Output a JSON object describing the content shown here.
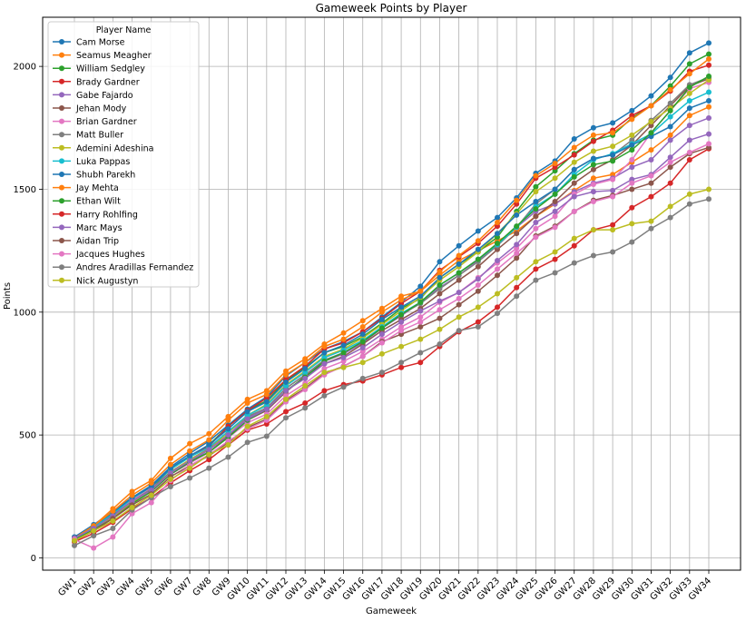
{
  "chart_data": {
    "type": "line",
    "title": "Gameweek Points by Player",
    "xlabel": "Gameweek",
    "ylabel": "Points",
    "ylim": [
      -50,
      2200
    ],
    "yticks": [
      0,
      500,
      1000,
      1500,
      2000
    ],
    "grid": true,
    "legend": {
      "title": "Player Name",
      "placement": "top-left"
    },
    "categories": [
      "GW1",
      "GW2",
      "GW3",
      "GW4",
      "GW5",
      "GW6",
      "GW7",
      "GW8",
      "GW9",
      "GW10",
      "GW11",
      "GW12",
      "GW13",
      "GW14",
      "GW15",
      "GW16",
      "GW17",
      "GW18",
      "GW19",
      "GW20",
      "GW21",
      "GW22",
      "GW23",
      "GW24",
      "GW25",
      "GW26",
      "GW27",
      "GW28",
      "GW29",
      "GW30",
      "GW31",
      "GW32",
      "GW33",
      "GW34"
    ],
    "series": [
      {
        "name": "Cam Morse",
        "color": "#1f77b4",
        "values": [
          85,
          135,
          190,
          245,
          295,
          370,
          425,
          475,
          540,
          605,
          655,
          740,
          795,
          850,
          880,
          920,
          980,
          1040,
          1105,
          1205,
          1270,
          1330,
          1385,
          1465,
          1565,
          1615,
          1705,
          1750,
          1770,
          1820,
          1880,
          1955,
          2055,
          2095
        ]
      },
      {
        "name": "Seamus Meagher",
        "color": "#ff7f0e",
        "values": [
          75,
          130,
          200,
          270,
          315,
          405,
          465,
          505,
          575,
          645,
          680,
          760,
          810,
          870,
          915,
          965,
          1015,
          1065,
          1085,
          1150,
          1210,
          1250,
          1290,
          1330,
          1390,
          1440,
          1495,
          1545,
          1560,
          1610,
          1660,
          1720,
          1800,
          1835
        ]
      },
      {
        "name": "William Sedgley",
        "color": "#2ca02c",
        "values": [
          80,
          125,
          170,
          235,
          285,
          360,
          410,
          460,
          535,
          600,
          640,
          720,
          775,
          835,
          860,
          900,
          955,
          1015,
          1055,
          1140,
          1195,
          1245,
          1305,
          1410,
          1510,
          1575,
          1645,
          1700,
          1720,
          1790,
          1840,
          1920,
          2010,
          2050
        ]
      },
      {
        "name": "Brady Gardner",
        "color": "#d62728",
        "values": [
          80,
          120,
          180,
          240,
          290,
          360,
          415,
          455,
          535,
          600,
          650,
          725,
          780,
          850,
          875,
          920,
          975,
          1035,
          1085,
          1170,
          1225,
          1280,
          1350,
          1440,
          1545,
          1590,
          1640,
          1695,
          1740,
          1800,
          1840,
          1900,
          1980,
          2005
        ]
      },
      {
        "name": "Gabe Fajardo",
        "color": "#9467bd",
        "values": [
          75,
          120,
          175,
          240,
          280,
          345,
          390,
          440,
          500,
          570,
          610,
          690,
          745,
          800,
          830,
          875,
          935,
          985,
          1040,
          1100,
          1150,
          1210,
          1275,
          1345,
          1410,
          1440,
          1490,
          1525,
          1545,
          1590,
          1620,
          1700,
          1760,
          1790
        ]
      },
      {
        "name": "Jehan Mody",
        "color": "#8c564b",
        "values": [
          70,
          115,
          170,
          225,
          270,
          340,
          390,
          430,
          495,
          560,
          600,
          675,
          740,
          790,
          820,
          870,
          925,
          970,
          1015,
          1075,
          1130,
          1185,
          1255,
          1320,
          1390,
          1450,
          1525,
          1580,
          1620,
          1680,
          1760,
          1840,
          1920,
          1950
        ]
      },
      {
        "name": "Brian Gardner",
        "color": "#e377c2",
        "values": [
          75,
          120,
          175,
          235,
          285,
          340,
          385,
          430,
          490,
          550,
          585,
          660,
          710,
          770,
          800,
          840,
          890,
          940,
          980,
          1040,
          1080,
          1140,
          1200,
          1260,
          1340,
          1390,
          1480,
          1520,
          1540,
          1620,
          1730,
          1820,
          1910,
          1935
        ]
      },
      {
        "name": "Matt Buller",
        "color": "#7f7f7f",
        "values": [
          80,
          120,
          175,
          230,
          280,
          350,
          400,
          445,
          510,
          575,
          610,
          690,
          745,
          805,
          835,
          880,
          935,
          990,
          1035,
          1095,
          1150,
          1205,
          1270,
          1345,
          1440,
          1500,
          1580,
          1625,
          1640,
          1700,
          1780,
          1850,
          1925,
          1955
        ]
      },
      {
        "name": "Ademini Adeshina",
        "color": "#bcbd22",
        "values": [
          75,
          115,
          165,
          225,
          275,
          345,
          400,
          440,
          510,
          580,
          625,
          705,
          760,
          820,
          850,
          895,
          950,
          1005,
          1060,
          1130,
          1185,
          1245,
          1320,
          1400,
          1490,
          1545,
          1610,
          1655,
          1675,
          1720,
          1775,
          1830,
          1890,
          1945
        ]
      },
      {
        "name": "Luka Pappas",
        "color": "#17becf",
        "values": [
          80,
          125,
          180,
          240,
          290,
          360,
          410,
          450,
          515,
          580,
          620,
          700,
          755,
          815,
          845,
          885,
          940,
          995,
          1040,
          1110,
          1160,
          1215,
          1275,
          1345,
          1430,
          1480,
          1560,
          1620,
          1645,
          1685,
          1725,
          1795,
          1860,
          1895
        ]
      },
      {
        "name": "Shubh Parekh",
        "color": "#1f77b4",
        "values": [
          85,
          130,
          185,
          245,
          290,
          365,
          415,
          460,
          525,
          595,
          635,
          715,
          770,
          835,
          865,
          910,
          970,
          1020,
          1065,
          1140,
          1195,
          1255,
          1320,
          1395,
          1450,
          1500,
          1580,
          1625,
          1640,
          1680,
          1715,
          1755,
          1830,
          1860
        ]
      },
      {
        "name": "Jay Mehta",
        "color": "#ff7f0e",
        "values": [
          80,
          130,
          190,
          255,
          305,
          380,
          435,
          480,
          560,
          630,
          665,
          745,
          795,
          860,
          890,
          940,
          1000,
          1050,
          1085,
          1165,
          1230,
          1290,
          1365,
          1455,
          1555,
          1605,
          1670,
          1720,
          1730,
          1785,
          1840,
          1905,
          1970,
          2030
        ]
      },
      {
        "name": "Ethan Wilt",
        "color": "#2ca02c",
        "values": [
          75,
          115,
          160,
          220,
          270,
          340,
          390,
          430,
          490,
          560,
          605,
          680,
          735,
          800,
          835,
          880,
          935,
          990,
          1040,
          1110,
          1160,
          1215,
          1280,
          1350,
          1420,
          1480,
          1550,
          1600,
          1615,
          1660,
          1730,
          1820,
          1915,
          1960
        ]
      },
      {
        "name": "Harry Rohlfing",
        "color": "#d62728",
        "values": [
          65,
          100,
          145,
          200,
          245,
          305,
          355,
          400,
          460,
          520,
          545,
          595,
          630,
          680,
          705,
          720,
          745,
          775,
          795,
          860,
          920,
          960,
          1020,
          1100,
          1175,
          1215,
          1270,
          1335,
          1355,
          1425,
          1470,
          1525,
          1620,
          1665
        ]
      },
      {
        "name": "Marc Mays",
        "color": "#9467bd",
        "values": [
          80,
          120,
          170,
          230,
          275,
          345,
          395,
          440,
          500,
          565,
          605,
          680,
          730,
          790,
          815,
          855,
          910,
          960,
          1005,
          1045,
          1080,
          1135,
          1210,
          1275,
          1365,
          1410,
          1470,
          1490,
          1495,
          1540,
          1560,
          1630,
          1700,
          1725
        ]
      },
      {
        "name": "Aidan Trip",
        "color": "#8c564b",
        "values": [
          70,
          110,
          160,
          215,
          260,
          330,
          375,
          415,
          470,
          530,
          565,
          640,
          690,
          750,
          780,
          820,
          880,
          910,
          940,
          975,
          1030,
          1085,
          1150,
          1220,
          1310,
          1350,
          1410,
          1455,
          1475,
          1500,
          1525,
          1590,
          1645,
          1670
        ]
      },
      {
        "name": "Jacques Hughes",
        "color": "#e377c2",
        "values": [
          75,
          40,
          85,
          180,
          225,
          315,
          375,
          420,
          475,
          525,
          560,
          635,
          685,
          745,
          780,
          820,
          875,
          925,
          960,
          1010,
          1055,
          1110,
          1175,
          1240,
          1305,
          1345,
          1410,
          1450,
          1470,
          1525,
          1555,
          1610,
          1650,
          1685
        ]
      },
      {
        "name": "Andres Aradillas Fernandez",
        "color": "#7f7f7f",
        "values": [
          50,
          90,
          120,
          195,
          245,
          290,
          325,
          365,
          410,
          470,
          495,
          570,
          610,
          660,
          695,
          730,
          755,
          795,
          835,
          870,
          925,
          940,
          995,
          1065,
          1130,
          1160,
          1200,
          1230,
          1245,
          1285,
          1340,
          1385,
          1440,
          1460
        ]
      },
      {
        "name": "Nick Augustyn",
        "color": "#bcbd22",
        "values": [
          70,
          110,
          150,
          205,
          255,
          320,
          365,
          420,
          460,
          535,
          575,
          645,
          700,
          755,
          775,
          795,
          830,
          860,
          890,
          930,
          980,
          1020,
          1075,
          1140,
          1205,
          1245,
          1300,
          1335,
          1335,
          1360,
          1370,
          1430,
          1480,
          1500
        ]
      }
    ]
  }
}
